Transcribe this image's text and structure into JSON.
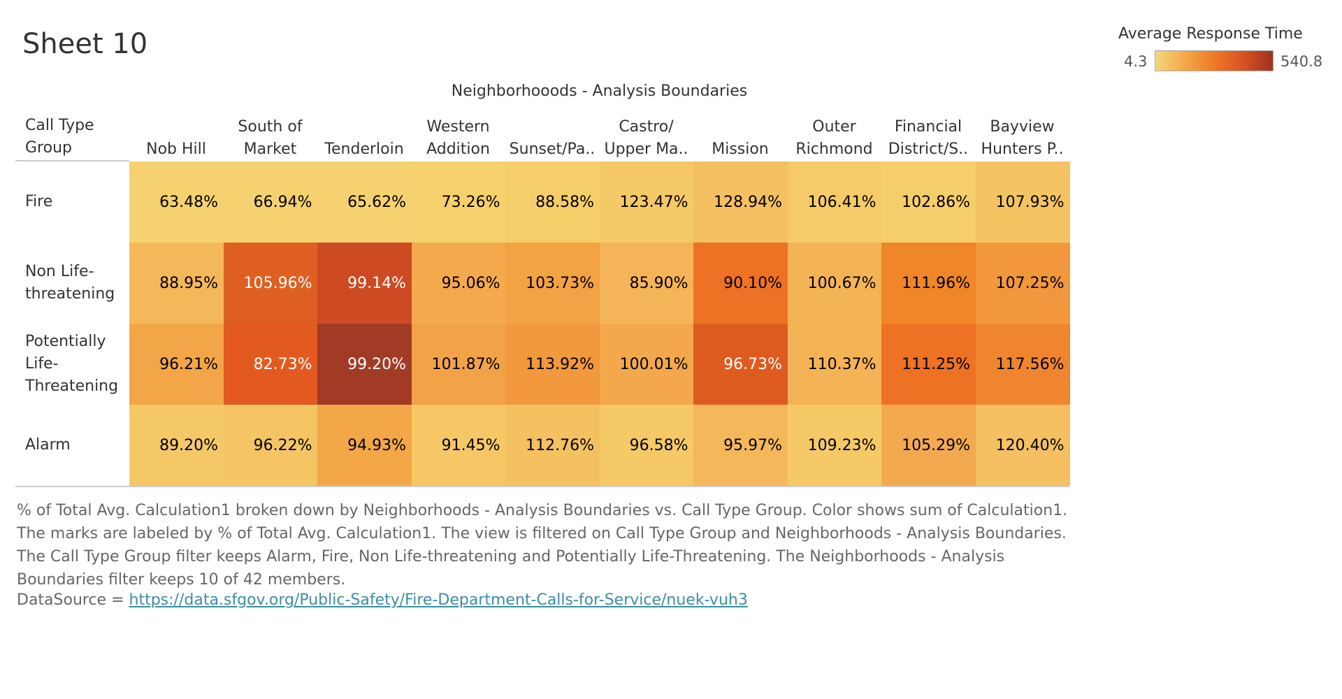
{
  "sheet_title": "Sheet 10",
  "legend": {
    "title": "Average Response Time",
    "min_label": "4.3",
    "max_label": "540.8",
    "gradient_colors": [
      "#f5d77c",
      "#f3a84a",
      "#ef7a26",
      "#d95121",
      "#9c3320"
    ]
  },
  "caption": {
    "lines": [
      "% of Total Avg. Calculation1 broken down by Neighborhoods - Analysis Boundaries vs. Call Type Group.  Color shows sum of Calculation1.",
      "The marks are labeled by % of Total Avg. Calculation1. The view is filtered on Call Type Group and Neighborhoods - Analysis Boundaries.",
      "The Call Type Group filter keeps Alarm, Fire, Non Life-threatening and Potentially Life-Threatening. The Neighborhoods - Analysis",
      "Boundaries filter keeps 10 of 42 members."
    ],
    "datasource_prefix": "DataSource = ",
    "datasource_link": "https://data.sfgov.org/Public-Safety/Fire-Department-Calls-for-Service/nuek-vuh3"
  },
  "chart_data": {
    "type": "heatmap",
    "title": "Sheet 10",
    "column_axis_title": "Neighborhooods - Analysis Boundaries",
    "row_axis_title": [
      "Call Type",
      "Group"
    ],
    "columns": [
      [
        "Nob Hill"
      ],
      [
        "South of",
        "Market"
      ],
      [
        "Tenderloin"
      ],
      [
        "Western",
        "Addition"
      ],
      [
        "Sunset/Pa.."
      ],
      [
        "Castro/",
        "Upper Ma.."
      ],
      [
        "Mission"
      ],
      [
        "Outer",
        "Richmond"
      ],
      [
        "Financial",
        "District/S.."
      ],
      [
        "Bayview",
        "Hunters P.."
      ]
    ],
    "rows": [
      {
        "label": [
          "Fire"
        ],
        "values": [
          "63.48%",
          "66.94%",
          "65.62%",
          "73.26%",
          "88.58%",
          "123.47%",
          "128.94%",
          "106.41%",
          "102.86%",
          "107.93%"
        ],
        "colors": [
          "#f5d26f",
          "#f5d26f",
          "#f5d26f",
          "#f5d06d",
          "#f5cd69",
          "#f5c967",
          "#f4c061",
          "#f5ca69",
          "#f5cd6b",
          "#f4c463"
        ],
        "light_text": [
          false,
          false,
          false,
          false,
          false,
          false,
          false,
          false,
          false,
          false
        ]
      },
      {
        "label": [
          "Non Life-",
          "threatening"
        ],
        "values": [
          "88.95%",
          "105.96%",
          "99.14%",
          "95.06%",
          "103.73%",
          "85.90%",
          "90.10%",
          "100.67%",
          "111.96%",
          "107.25%"
        ],
        "colors": [
          "#f4b85a",
          "#df5f23",
          "#cd4a23",
          "#f3a94c",
          "#f3a244",
          "#f4b457",
          "#ed7223",
          "#f4b456",
          "#ef8628",
          "#f2983c"
        ],
        "light_text": [
          false,
          true,
          true,
          false,
          false,
          false,
          false,
          false,
          false,
          false
        ]
      },
      {
        "label": [
          "Potentially",
          "Life-",
          "Threatening"
        ],
        "values": [
          "96.21%",
          "82.73%",
          "99.20%",
          "101.87%",
          "113.92%",
          "100.01%",
          "96.73%",
          "110.37%",
          "111.25%",
          "117.56%"
        ],
        "colors": [
          "#f3a648",
          "#e25a20",
          "#a23b25",
          "#f3a347",
          "#f2983d",
          "#f3a84b",
          "#de5b20",
          "#f4b456",
          "#ee7224",
          "#f08530"
        ],
        "light_text": [
          false,
          true,
          true,
          false,
          false,
          false,
          true,
          false,
          false,
          false
        ]
      },
      {
        "label": [
          "Alarm"
        ],
        "values": [
          "89.20%",
          "96.22%",
          "94.93%",
          "91.45%",
          "112.76%",
          "96.58%",
          "95.97%",
          "109.23%",
          "105.29%",
          "120.40%"
        ],
        "colors": [
          "#f5c867",
          "#f5c564",
          "#f3a746",
          "#f5c865",
          "#f4c161",
          "#f5c966",
          "#f4b85a",
          "#f5c966",
          "#f3aa4f",
          "#f4c061"
        ],
        "light_text": [
          false,
          false,
          false,
          false,
          false,
          false,
          false,
          false,
          false,
          false
        ]
      }
    ]
  }
}
